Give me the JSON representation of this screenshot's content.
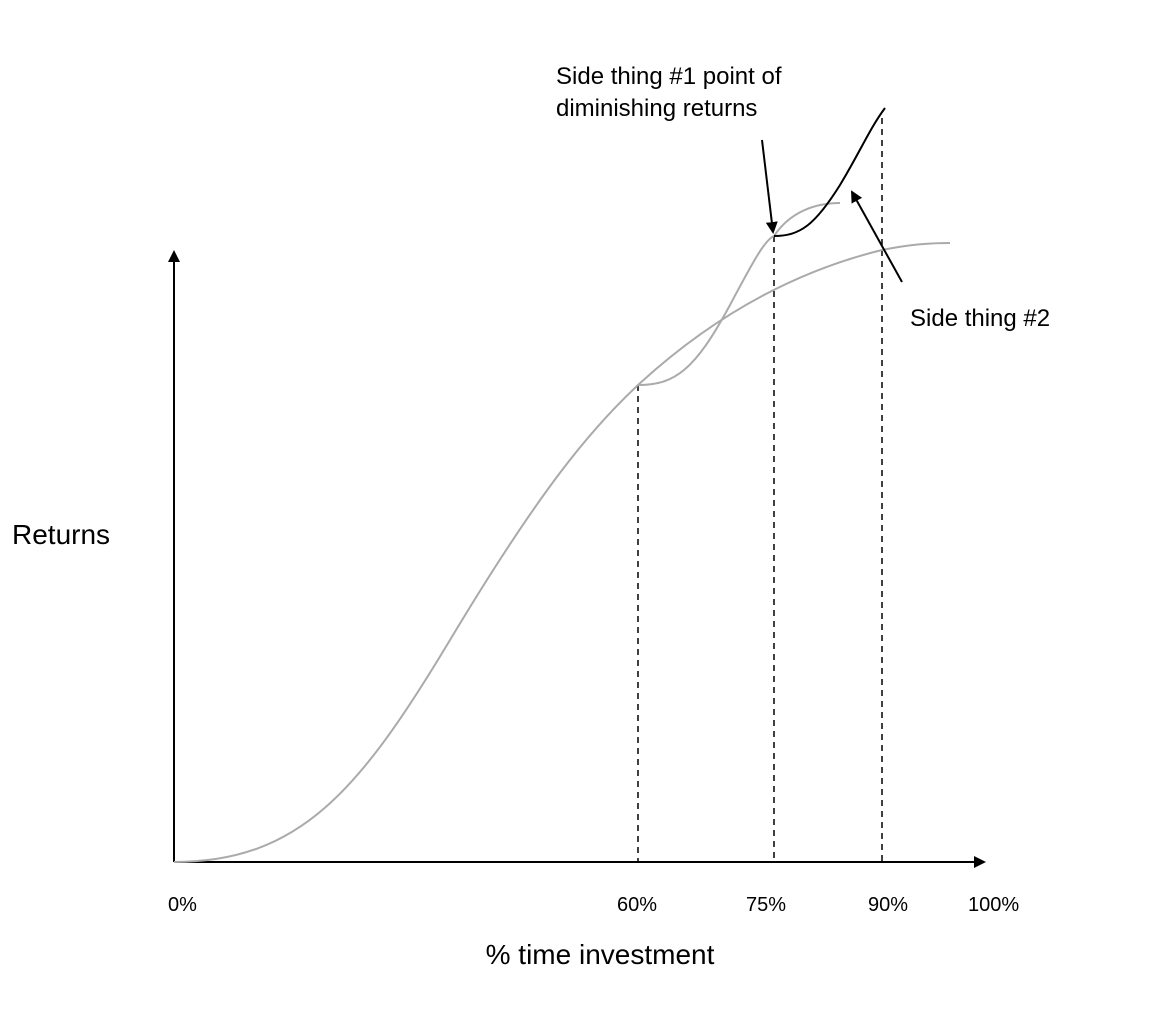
{
  "y_axis_label": "Returns",
  "x_axis_label": "% time investment",
  "x_ticks": [
    "0%",
    "60%",
    "75%",
    "90%",
    "100%"
  ],
  "annotations": [
    {
      "lines": [
        "Side thing #1 point of",
        "diminishing returns"
      ]
    },
    {
      "lines": [
        "Side thing #2"
      ]
    }
  ]
}
